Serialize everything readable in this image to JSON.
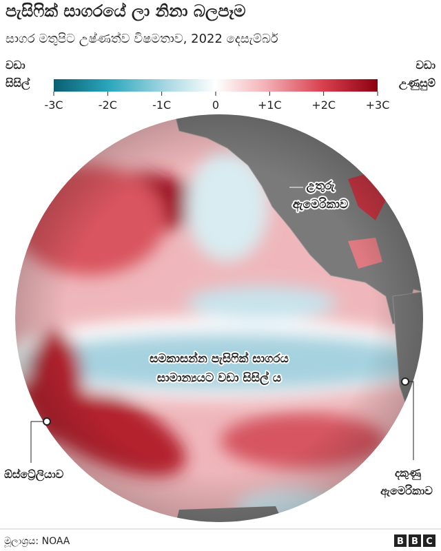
{
  "header": {
    "title": "පැසිෆික් සාගරයේ ලා නිනා බලපෑම",
    "subtitle": "සාගර මතුපිට උෂ්ණත්ව විෂමතාව, 2022 දෙසැම්බර්"
  },
  "legend": {
    "cold_label": [
      "වඩා",
      "සිසිල්"
    ],
    "warm_label": [
      "වඩා",
      "උණුසුම්"
    ],
    "ticks": [
      {
        "value": -3,
        "label": "-3C"
      },
      {
        "value": -2,
        "label": "-2C"
      },
      {
        "value": -1,
        "label": "-1C"
      },
      0,
      {
        "value": 1,
        "label": "+1C"
      },
      {
        "value": 2,
        "label": "+2C"
      },
      {
        "value": 3,
        "label": "+3C"
      }
    ]
  },
  "map": {
    "north_america": [
      "උතුරු",
      "ඇමෙරිකාව"
    ],
    "equatorial": [
      "සමකාසන්න පැසිෆික් සාගරය",
      "සාමාන්‍යයට වඩා සිසිල් ය"
    ],
    "australia": "ඕස්ට්‍රේලියාව",
    "south_america": [
      "දකුණු",
      "ඇමෙරිකාව"
    ]
  },
  "footer": {
    "source": "මූලාශ්‍රය: NOAA",
    "logo": [
      "B",
      "B",
      "C"
    ]
  }
}
